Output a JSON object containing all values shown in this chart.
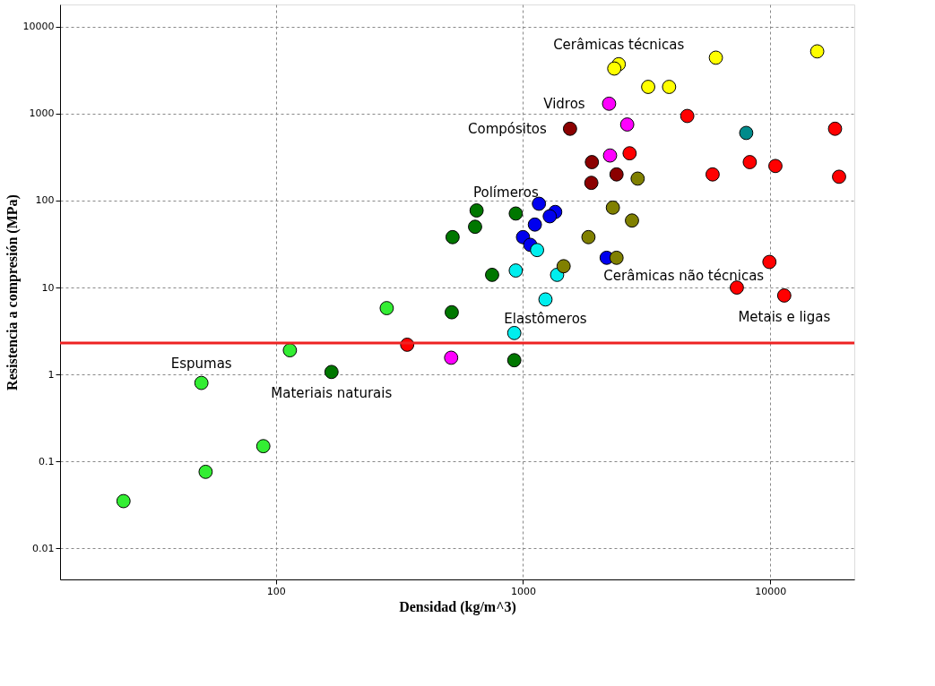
{
  "chart_data": {
    "type": "scatter",
    "xlabel": "Densidad (kg/m^3)",
    "ylabel": "Resistencia a compresión (MPa)",
    "log": "xy",
    "grid": true,
    "xlim": [
      13.4,
      21900
    ],
    "ylim": [
      0.0044,
      18000
    ],
    "xticks": [
      100,
      1000,
      10000
    ],
    "yticks": [
      0.01,
      0.1,
      1,
      10,
      100,
      1000,
      10000
    ],
    "series": [
      {
        "name": "Espumas",
        "color": "#33ee33",
        "x": [
          50,
          24.2,
          52,
          89,
          114,
          281
        ],
        "values": [
          0.8,
          0.035,
          0.076,
          0.15,
          1.9,
          5.8
        ]
      },
      {
        "name": "Materiais naturais",
        "color": "#007700",
        "x": [
          168,
          515,
          649,
          640,
          519,
          750,
          922,
          935
        ],
        "values": [
          1.07,
          5.2,
          77,
          50,
          38,
          14,
          1.46,
          71
        ]
      },
      {
        "color": "#ff0000",
        "x": [
          340
        ],
        "values": [
          2.2
        ]
      },
      {
        "color": "#ff00ff",
        "x": [
          512
        ],
        "values": [
          1.56
        ]
      },
      {
        "name": "Polímeros",
        "color": "#0000ee",
        "x": [
          1350,
          1117,
          1000,
          1283,
          1160,
          1070,
          2180
        ],
        "values": [
          74,
          53,
          38,
          66,
          92,
          31,
          22
        ]
      },
      {
        "name": "Elastômeros",
        "color": "#00eeee",
        "x": [
          1233,
          1374,
          922,
          935,
          1140
        ],
        "values": [
          7.3,
          14,
          3,
          15.7,
          27
        ]
      },
      {
        "name": "Cerâmicas não técnicas",
        "color": "#808000",
        "x": [
          2390,
          1840,
          2310,
          1460,
          2910,
          2760
        ],
        "values": [
          22,
          38,
          83,
          17.6,
          179,
          59
        ]
      },
      {
        "name": "Vidros",
        "color": "#ff00ff",
        "x": [
          2230,
          2640,
          2250
        ],
        "values": [
          1300,
          750,
          330
        ]
      },
      {
        "name": "Compósitos",
        "color": "#8b0000",
        "x": [
          1550,
          1900,
          1890,
          2390
        ],
        "values": [
          670,
          277,
          160,
          200
        ]
      },
      {
        "name": "Cerâmicas técnicas",
        "color": "#ffff00",
        "x": [
          2440,
          3210,
          3900,
          6030,
          15500,
          2340
        ],
        "values": [
          3700,
          2030,
          2030,
          4400,
          5200,
          3300
        ]
      },
      {
        "name": "Metais e ligas",
        "color": "#ff0000",
        "x": [
          11400,
          9930,
          5850,
          4620,
          8270,
          18300,
          7330,
          2700,
          10500,
          19000
        ],
        "values": [
          8.1,
          19.7,
          200,
          940,
          277,
          670,
          10,
          350,
          250,
          188
        ]
      },
      {
        "color": "#008b8b",
        "x": [
          8000
        ],
        "values": [
          600
        ]
      }
    ],
    "ref_lines": [
      {
        "axis": "y",
        "value": 2.3,
        "color": "#ee2222"
      }
    ]
  }
}
